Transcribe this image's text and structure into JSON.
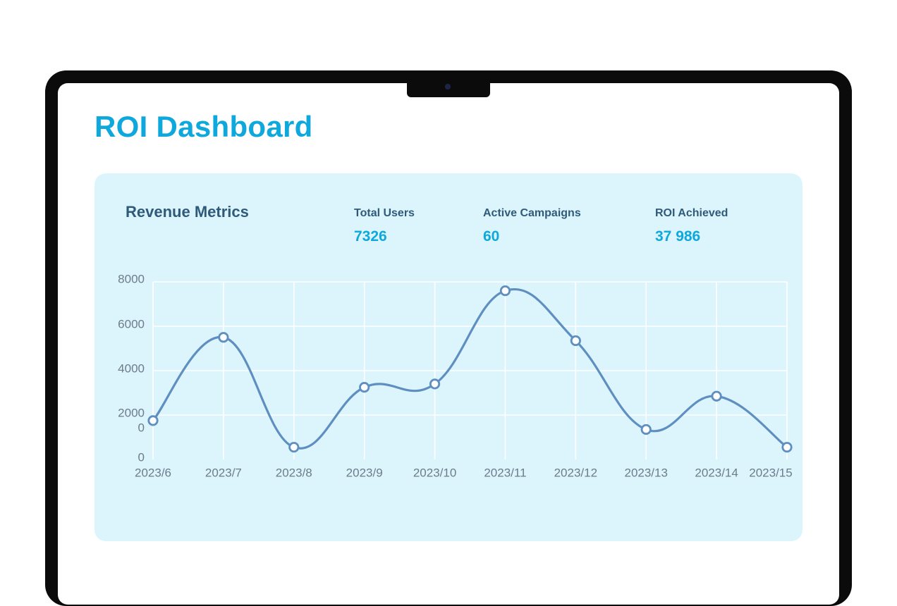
{
  "page": {
    "title": "ROI Dashboard"
  },
  "card": {
    "title": "Revenue Metrics",
    "stats": [
      {
        "label": "Total Users",
        "value": "7326"
      },
      {
        "label": "Active Campaigns",
        "value": "60"
      },
      {
        "label": "ROI Achieved",
        "value": "37 986"
      }
    ]
  },
  "colors": {
    "accent": "#0fa8dc",
    "heading": "#2f5a7a",
    "card_background": "#dcf5fc",
    "line": "#5f8fc0"
  },
  "chart_data": {
    "type": "line",
    "title": "",
    "xlabel": "",
    "ylabel": "",
    "categories": [
      "2023/6",
      "2023/7",
      "2023/8",
      "2023/9",
      "2023/10",
      "2023/11",
      "2023/12",
      "2023/13",
      "2023/14",
      "2023/15"
    ],
    "series": [
      {
        "values": [
          1750,
          5500,
          550,
          3250,
          3400,
          7600,
          5350,
          1350,
          2850,
          550
        ]
      }
    ],
    "y_ticks": [
      "8000",
      "6000",
      "4000",
      "2000",
      "0",
      "0"
    ],
    "ylim": [
      0,
      8000
    ],
    "grid": true,
    "smooth": true,
    "markers": "hollow-circle"
  }
}
